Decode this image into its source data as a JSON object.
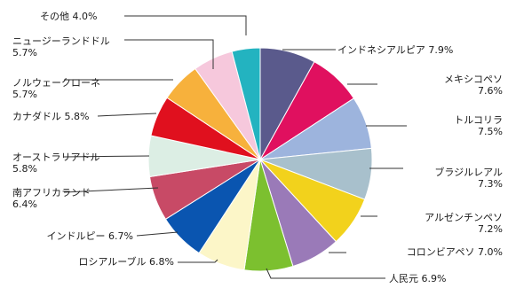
{
  "chart_data": {
    "type": "pie",
    "title": "",
    "unit": "%",
    "start_angle_deg": 0,
    "direction": "clockwise",
    "slices": [
      {
        "name": "インドネシアルピア",
        "value": 7.9,
        "label": [
          "インドネシアルピア 7.9%"
        ],
        "color": "#5a5a8c",
        "anchor": "start"
      },
      {
        "name": "メキシコペソ",
        "value": 7.6,
        "label": [
          "メキシコペソ",
          "7.6%"
        ],
        "color": "#e0105f",
        "anchor": "end"
      },
      {
        "name": "トルコリラ",
        "value": 7.5,
        "label": [
          "トルコリラ",
          "7.5%"
        ],
        "color": "#9db4dd",
        "anchor": "end"
      },
      {
        "name": "ブラジルレアル",
        "value": 7.3,
        "label": [
          "ブラジルレアル",
          "7.3%"
        ],
        "color": "#a8c0cc",
        "anchor": "end"
      },
      {
        "name": "アルゼンチンペソ",
        "value": 7.2,
        "label": [
          "アルゼンチンペソ",
          "7.2%"
        ],
        "color": "#f2d21c",
        "anchor": "end"
      },
      {
        "name": "コロンビアペソ",
        "value": 7.0,
        "label": [
          "コロンビアペソ 7.0%"
        ],
        "color": "#9a7ab8",
        "anchor": "end"
      },
      {
        "name": "人民元",
        "value": 6.9,
        "label": [
          "人民元 6.9%"
        ],
        "color": "#7cc02f",
        "anchor": "start"
      },
      {
        "name": "ロシアルーブル",
        "value": 6.8,
        "label": [
          "ロシアルーブル 6.8%"
        ],
        "color": "#fcf6c8",
        "anchor": "end"
      },
      {
        "name": "インドルピー",
        "value": 6.7,
        "label": [
          "インドルピー 6.7%"
        ],
        "color": "#0a55b0",
        "anchor": "end"
      },
      {
        "name": "南アフリカランド",
        "value": 6.4,
        "label": [
          "南アフリカランド",
          "6.4%"
        ],
        "color": "#c84a66",
        "anchor": "start"
      },
      {
        "name": "オーストラリアドル",
        "value": 5.8,
        "label": [
          "オーストラリアドル",
          "5.8%"
        ],
        "color": "#dceee4",
        "anchor": "start"
      },
      {
        "name": "カナダドル",
        "value": 5.8,
        "label": [
          "カナダドル 5.8%"
        ],
        "color": "#e0101e",
        "anchor": "start"
      },
      {
        "name": "ノルウェークローネ",
        "value": 5.7,
        "label": [
          "ノルウェークローネ",
          "5.7%"
        ],
        "color": "#f7b13c",
        "anchor": "start"
      },
      {
        "name": "ニュージーランドドル",
        "value": 5.7,
        "label": [
          "ニュージーランドドル",
          "5.7%"
        ],
        "color": "#f6c8dc",
        "anchor": "start"
      },
      {
        "name": "その他",
        "value": 4.0,
        "label": [
          "その他 4.0%"
        ],
        "color": "#23b3c0",
        "anchor": "start"
      }
    ]
  }
}
